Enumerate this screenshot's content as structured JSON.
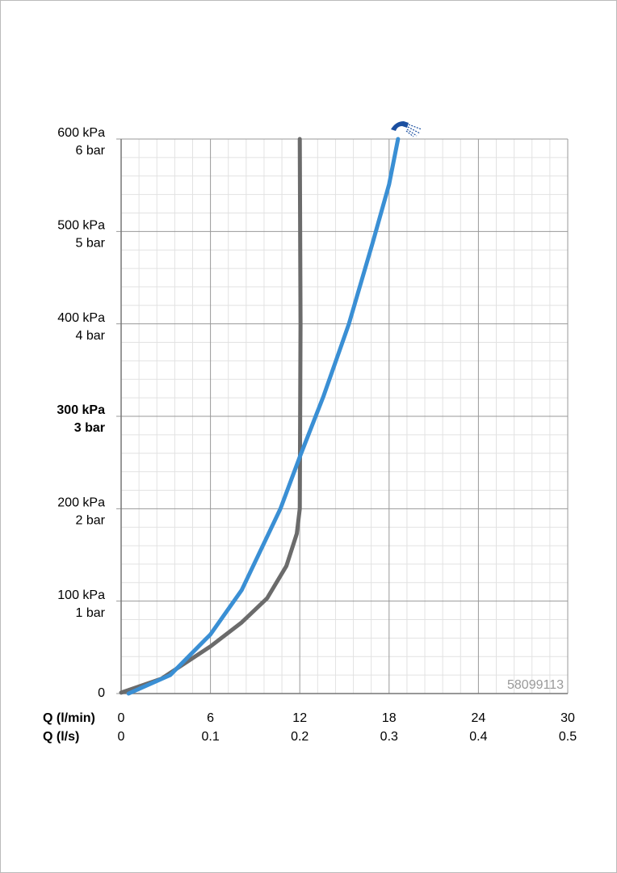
{
  "chart_data": {
    "type": "line",
    "xlabel": "Q (l/min)",
    "x2label": "Q (l/s)",
    "xlim": [
      0,
      30
    ],
    "xticks": [
      0,
      6,
      12,
      18,
      24,
      30
    ],
    "x2lim": [
      0,
      0.5
    ],
    "x2ticks": [
      0,
      0.1,
      0.2,
      0.3,
      0.4,
      0.5
    ],
    "ylim": [
      0,
      600
    ],
    "yticks": [
      0,
      {
        "value": 100,
        "label": "100 kPa"
      },
      {
        "value": 200,
        "label": "200 kPa"
      },
      {
        "value": 300,
        "label": "300 kPa"
      },
      {
        "value": 400,
        "label": "400 kPa"
      },
      {
        "value": 500,
        "label": "500 kPa"
      },
      {
        "value": 600,
        "label": "600 kPa"
      }
    ],
    "ytick_bar_labels": [
      null,
      "1 bar",
      "2 bar",
      "3 bar",
      "4 bar",
      "5 bar",
      "6 bar"
    ],
    "bold_ytick": 300,
    "grid": true,
    "minor_grid_divisions": 5,
    "annotation": "58099113",
    "series": [
      {
        "color": "#6b6b6b",
        "x": [
          0,
          2.7,
          6,
          8.1,
          9.8,
          11.1,
          11.8,
          12.0,
          12.05,
          12.0
        ],
        "values": [
          1,
          16,
          51,
          77,
          103,
          138,
          173,
          200,
          400,
          600
        ]
      },
      {
        "color": "#3a8fd4",
        "x": [
          0.5,
          3.3,
          6,
          8.1,
          10.7,
          12,
          13.6,
          15.3,
          16.9,
          18,
          18.6
        ],
        "values": [
          0,
          20,
          64,
          112,
          200,
          256,
          322,
          400,
          488,
          551,
          600
        ]
      }
    ]
  }
}
